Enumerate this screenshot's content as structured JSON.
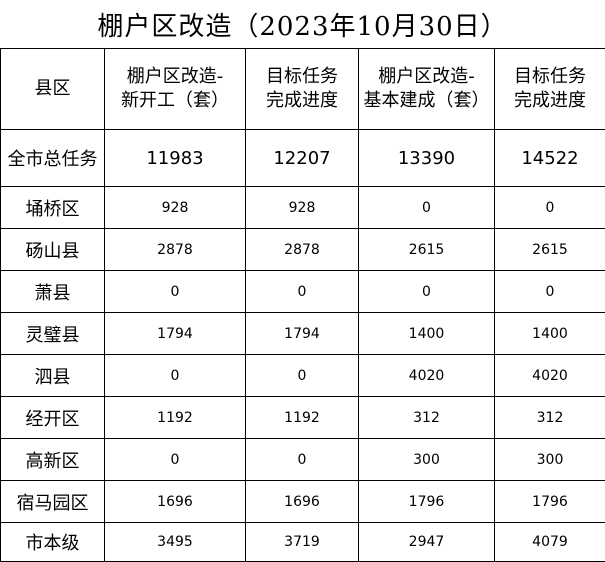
{
  "title": "棚户区改造（2023年10月30日）",
  "headers": [
    {
      "line1": "县区",
      "line2": ""
    },
    {
      "line1": "棚户区改造-",
      "line2": "新开工（套）"
    },
    {
      "line1": "目标任务",
      "line2": "完成进度"
    },
    {
      "line1": "棚户区改造-",
      "line2": "基本建成（套）"
    },
    {
      "line1": "目标任务",
      "line2": "完成进度"
    }
  ],
  "rows": [
    {
      "name": "全市总任务",
      "v1": "11983",
      "v2": "12207",
      "v3": "13390",
      "v4": "14522"
    },
    {
      "name": "埇桥区",
      "v1": "928",
      "v2": "928",
      "v3": "0",
      "v4": "0"
    },
    {
      "name": "砀山县",
      "v1": "2878",
      "v2": "2878",
      "v3": "2615",
      "v4": "2615"
    },
    {
      "name": "萧县",
      "v1": "0",
      "v2": "0",
      "v3": "0",
      "v4": "0"
    },
    {
      "name": "灵璧县",
      "v1": "1794",
      "v2": "1794",
      "v3": "1400",
      "v4": "1400"
    },
    {
      "name": "泗县",
      "v1": "0",
      "v2": "0",
      "v3": "4020",
      "v4": "4020"
    },
    {
      "name": "经开区",
      "v1": "1192",
      "v2": "1192",
      "v3": "312",
      "v4": "312"
    },
    {
      "name": "高新区",
      "v1": "0",
      "v2": "0",
      "v3": "300",
      "v4": "300"
    },
    {
      "name": "宿马园区",
      "v1": "1696",
      "v2": "1696",
      "v3": "1796",
      "v4": "1796"
    },
    {
      "name": "市本级",
      "v1": "3495",
      "v2": "3719",
      "v3": "2947",
      "v4": "4079"
    }
  ]
}
